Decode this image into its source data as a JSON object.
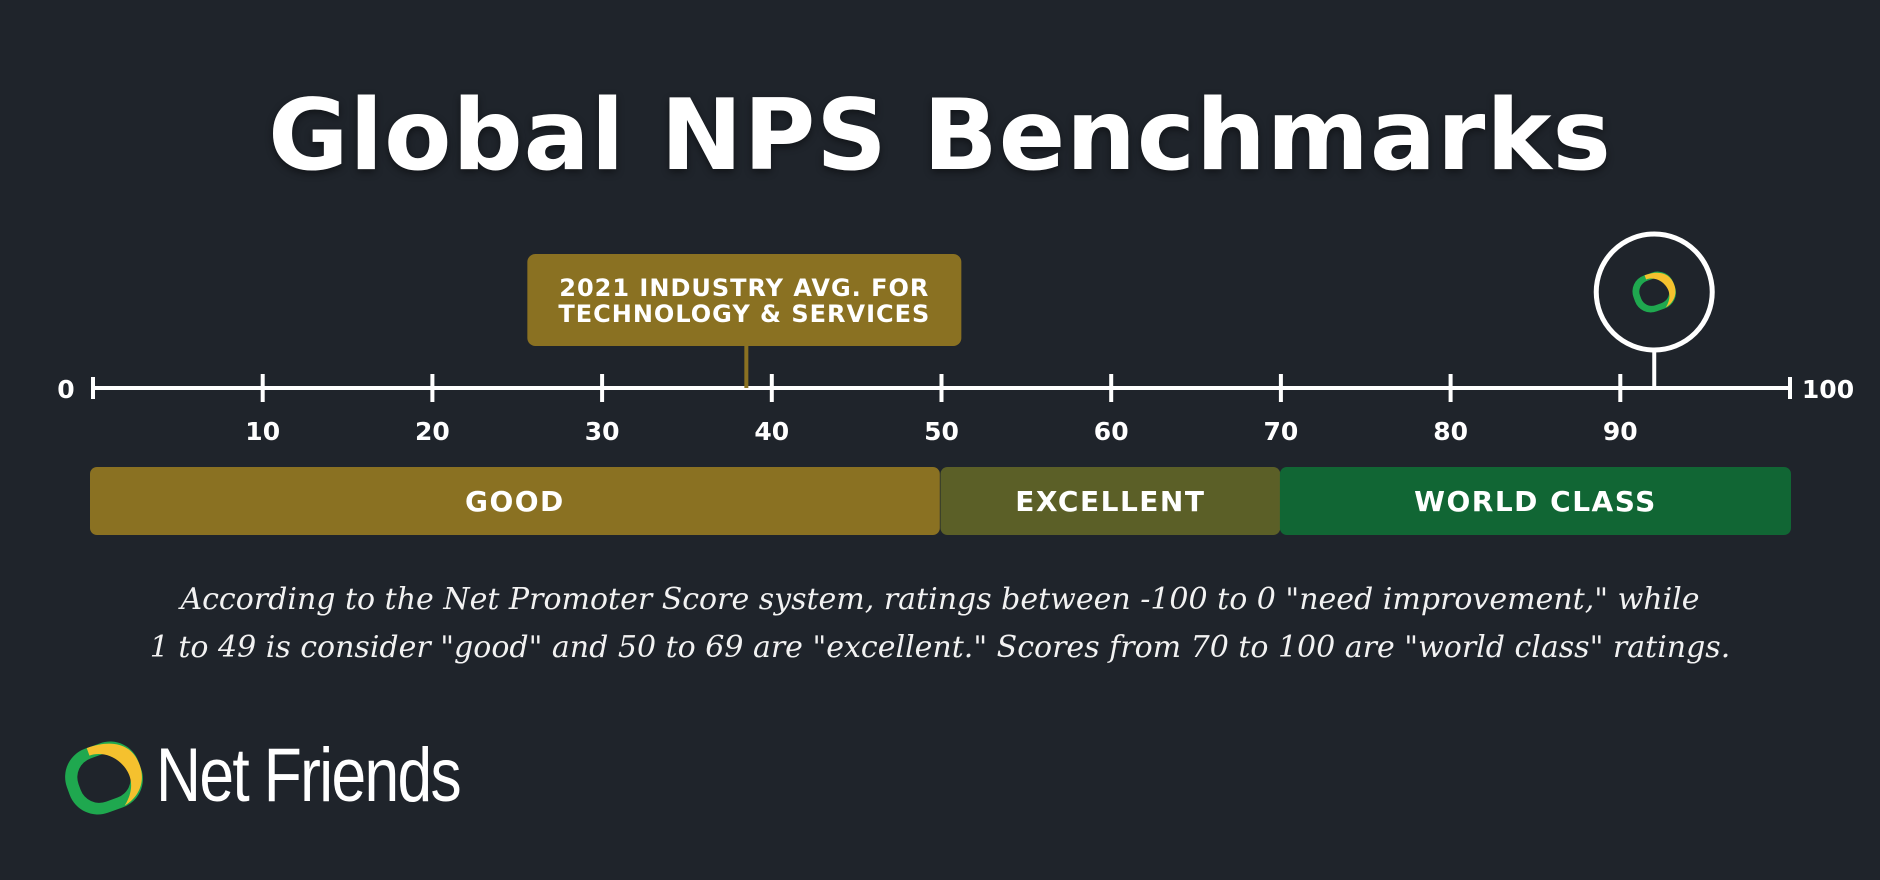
{
  "title": "Global NPS Benchmarks",
  "colors": {
    "background": "#1f242b",
    "good": "#8a7122",
    "excellent": "#5b5f27",
    "world_class": "#116634",
    "callout": "#8a7122",
    "logo_green": "#1fa84f",
    "logo_yellow": "#f5c12e"
  },
  "chart_data": {
    "type": "number-line",
    "xlim": [
      0,
      100
    ],
    "end_labels": [
      "0",
      "100"
    ],
    "ticks": [
      10,
      20,
      30,
      40,
      50,
      60,
      70,
      80,
      90
    ],
    "tick_labels": [
      "10",
      "20",
      "30",
      "40",
      "50",
      "60",
      "70",
      "80",
      "90"
    ],
    "bands": [
      {
        "label": "GOOD",
        "from": 0,
        "to": 49.9,
        "color": "#8a7122"
      },
      {
        "label": "EXCELLENT",
        "from": 50,
        "to": 69.9,
        "color": "#5b5f27"
      },
      {
        "label": "WORLD CLASS",
        "from": 70,
        "to": 100,
        "color": "#116634"
      }
    ],
    "markers": [
      {
        "kind": "callout",
        "value": 38.5,
        "lines": [
          "2021 INDUSTRY AVG. FOR",
          "TECHNOLOGY & SERVICES"
        ]
      },
      {
        "kind": "logo",
        "value": 92,
        "icon": "net-friends-logo-icon"
      }
    ]
  },
  "caption": {
    "line1": "According to the Net Promoter Score system, ratings between -100 to 0 \"need improvement,\" while",
    "line2": "1 to 49 is consider \"good\" and 50 to 69 are \"excellent.\" Scores from 70 to 100 are \"world class\" ratings."
  },
  "brand": {
    "name": "Net Friends",
    "icon": "net-friends-logo-icon"
  }
}
